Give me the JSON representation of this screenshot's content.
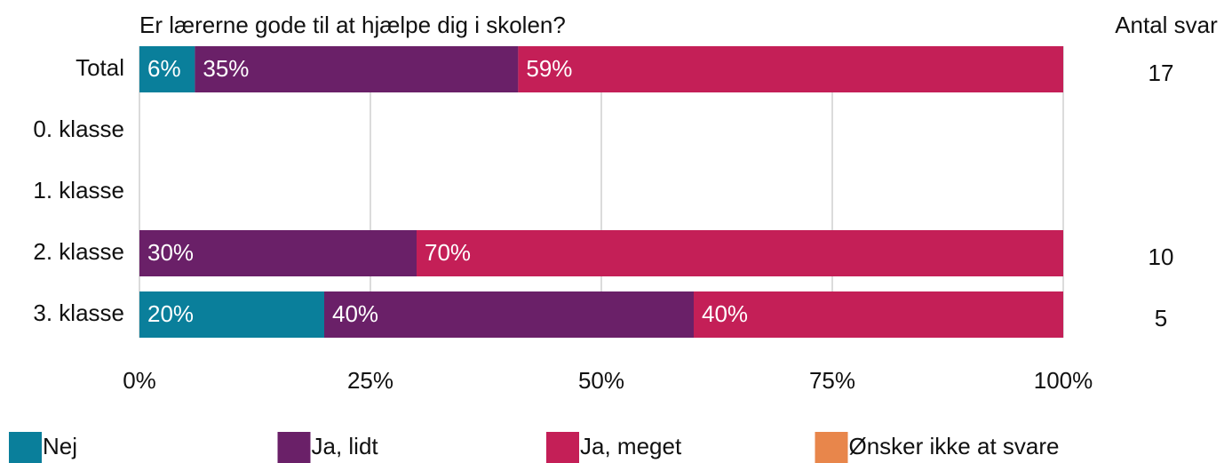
{
  "chart_data": {
    "type": "stacked_barh",
    "title": "Er lærerne gode til at hjælpe dig i skolen?",
    "counts_label": "Antal svar",
    "categories": [
      "Total",
      "0. klasse",
      "1. klasse",
      "2. klasse",
      "3. klasse"
    ],
    "series": [
      {
        "name": "Nej",
        "color": "#0a7f9b",
        "values": [
          6,
          null,
          null,
          null,
          20
        ],
        "value_labels": [
          "6%",
          null,
          null,
          null,
          "20%"
        ]
      },
      {
        "name": "Ja, lidt",
        "color": "#6a2068",
        "values": [
          35,
          null,
          null,
          30,
          40
        ],
        "value_labels": [
          "35%",
          null,
          null,
          "30%",
          "40%"
        ]
      },
      {
        "name": "Ja, meget",
        "color": "#c41f57",
        "values": [
          59,
          null,
          null,
          70,
          40
        ],
        "value_labels": [
          "59%",
          null,
          null,
          "70%",
          "40%"
        ]
      },
      {
        "name": "Ønsker ikke at svare",
        "color": "#e8864b",
        "values": [
          null,
          null,
          null,
          null,
          null
        ]
      }
    ],
    "counts": [
      17,
      null,
      null,
      10,
      5
    ],
    "xlim": [
      0,
      100
    ],
    "xticks": [
      {
        "value": 0,
        "label": "0%"
      },
      {
        "value": 25,
        "label": "25%"
      },
      {
        "value": 50,
        "label": "50%"
      },
      {
        "value": 75,
        "label": "75%"
      },
      {
        "value": 100,
        "label": "100%"
      }
    ],
    "grid": true
  }
}
